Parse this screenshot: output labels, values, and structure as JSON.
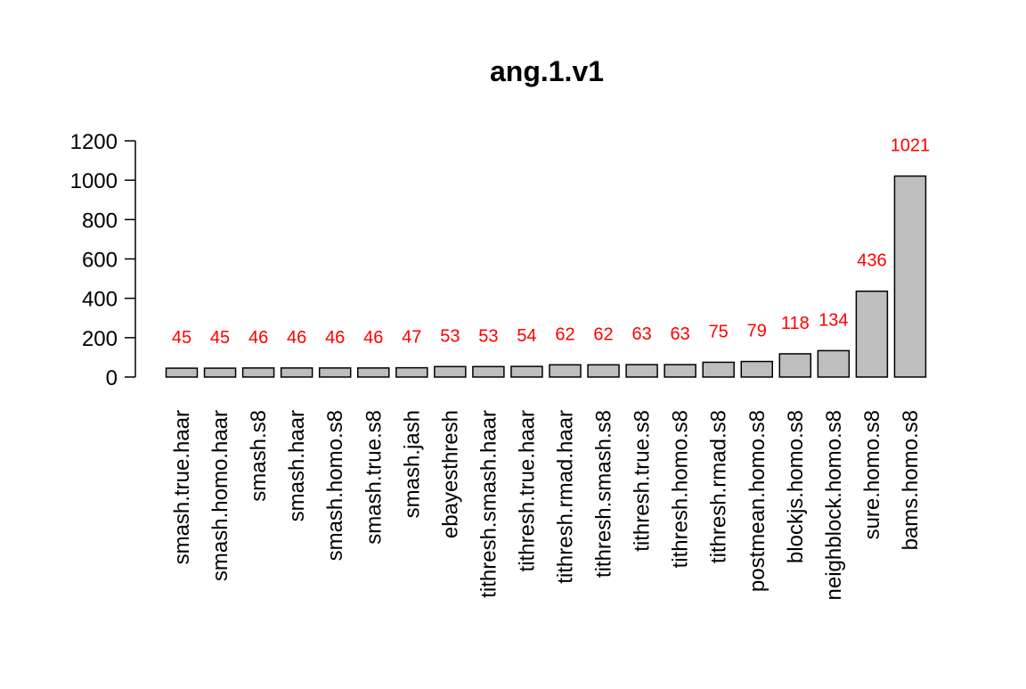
{
  "chart_data": {
    "type": "bar",
    "title": "ang.1.v1",
    "xlabel": "",
    "ylabel": "",
    "ylim": [
      0,
      1200
    ],
    "yticks": [
      0,
      200,
      400,
      600,
      800,
      1000,
      1200
    ],
    "categories": [
      "smash.true.haar",
      "smash.homo.haar",
      "smash.s8",
      "smash.haar",
      "smash.homo.s8",
      "smash.true.s8",
      "smash.jash",
      "ebayesthresh",
      "tithresh.smash.haar",
      "tithresh.true.haar",
      "tithresh.rmad.haar",
      "tithresh.smash.s8",
      "tithresh.true.s8",
      "tithresh.homo.s8",
      "tithresh.rmad.s8",
      "postmean.homo.s8",
      "blockjs.homo.s8",
      "neighblock.homo.s8",
      "sure.homo.s8",
      "bams.homo.s8"
    ],
    "values": [
      45,
      45,
      46,
      46,
      46,
      46,
      47,
      53,
      53,
      54,
      62,
      62,
      63,
      63,
      75,
      79,
      118,
      134,
      436,
      1021
    ],
    "data_labels": [
      "45",
      "45",
      "46",
      "46",
      "46",
      "46",
      "47",
      "53",
      "53",
      "54",
      "62",
      "62",
      "63",
      "63",
      "75",
      "79",
      "118",
      "134",
      "436",
      "1021"
    ],
    "grid": false,
    "legend": "none",
    "colors": {
      "bar_fill": "#bebebe",
      "bar_stroke": "#000000",
      "label": "#ff0000",
      "text": "#000000"
    }
  }
}
